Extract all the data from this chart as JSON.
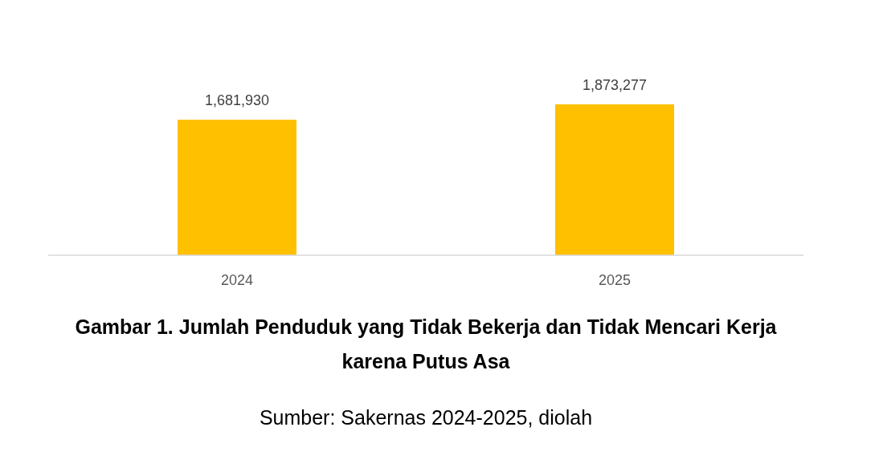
{
  "chart_data": {
    "type": "bar",
    "title": "Gambar 1. Jumlah Penduduk yang Tidak Bekerja dan Tidak Mencari Kerja karena Putus Asa",
    "categories": [
      "2024",
      "2025"
    ],
    "values": [
      1681930,
      1873277
    ],
    "color": "#ffc000",
    "data_labels": true,
    "value_labels": [
      "1,681,930",
      "1,873,277"
    ],
    "annotations": [
      "Sumber: Sakernas 2024-2025, diolah"
    ]
  }
}
